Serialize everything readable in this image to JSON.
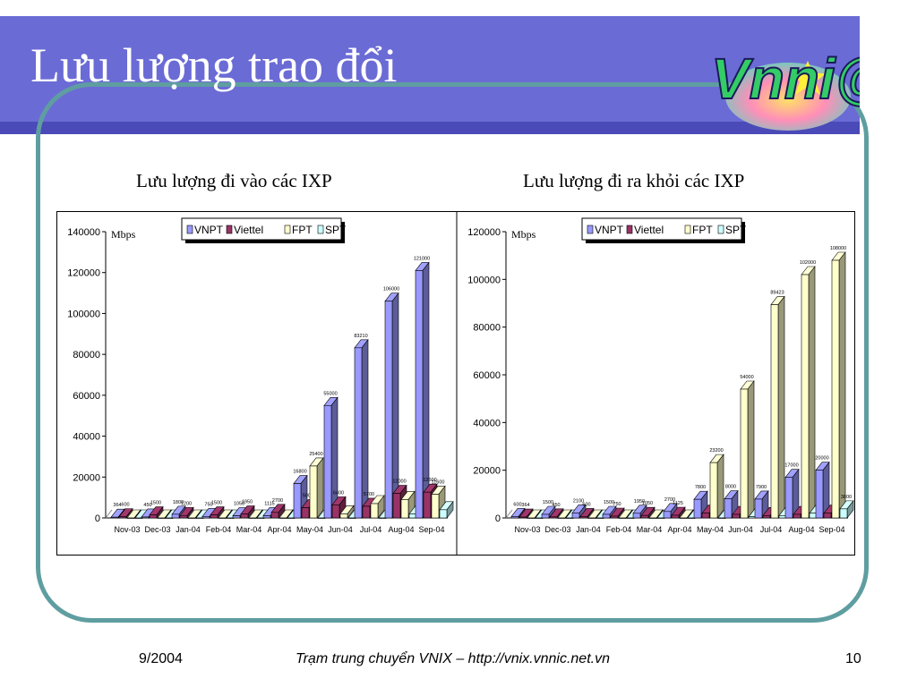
{
  "slide": {
    "title": "Lưu lượng trao đổi",
    "logo_text": "Vnni@",
    "footer_date": "9/2004",
    "footer_center": "Trạm trung chuyển VNIX – http://vnix.vnnic.net.vn",
    "page_number": "10"
  },
  "panels": {
    "left_title": "Lưu lượng đi vào các IXP",
    "right_title": "Lưu lượng đi ra khỏi các IXP"
  },
  "colors": {
    "VNPT": "#9999ff",
    "Viettel": "#993366",
    "FPT": "#ffffcc",
    "SPT": "#ccffff",
    "title_band": "#6b6bd6",
    "frame": "#5f9ea0"
  },
  "chart_data": [
    {
      "type": "bar",
      "title": "Lưu lượng đi vào các IXP",
      "unit": "Mbps",
      "categories": [
        "Nov-03",
        "Dec-03",
        "Jan-04",
        "Feb-04",
        "Mar-04",
        "Apr-04",
        "May-04",
        "Jun-04",
        "Jul-04",
        "Aug-04",
        "Sep-04"
      ],
      "ylim": [
        0,
        140000
      ],
      "yticks": [
        "0",
        "20000",
        "40000",
        "60000",
        "80000",
        "100000",
        "120000",
        "140000"
      ],
      "legend_position": "top",
      "series": [
        {
          "name": "VNPT",
          "values": [
            364,
            450,
            1800,
            750,
            1050,
            1115,
            16800,
            55000,
            83210,
            106000,
            121000
          ]
        },
        {
          "name": "Viettel",
          "values": [
            600,
            1500,
            1200,
            1500,
            1950,
            2700,
            5000,
            6400,
            5700,
            12000,
            12600
          ]
        },
        {
          "name": "FPT",
          "values": [
            0,
            0,
            0,
            0,
            0,
            0,
            25400,
            2000,
            7000,
            9000,
            11600
          ]
        },
        {
          "name": "SPT",
          "values": [
            0,
            0,
            0,
            0,
            0,
            0,
            0,
            0,
            0,
            2000,
            4000
          ]
        }
      ],
      "data_labels": [
        [
          "364",
          "450",
          "1800",
          "750",
          "1050",
          "1115",
          "16800",
          "55000",
          "83210",
          "106000",
          "121000"
        ],
        [
          "600",
          "1500",
          "1200",
          "1500",
          "1950",
          "2700",
          "5000",
          "6400",
          "5700",
          "12000",
          "12600"
        ],
        [
          "",
          "",
          "",
          "",
          "",
          "",
          "25400",
          "",
          "",
          "",
          "11600"
        ],
        [
          "",
          "",
          "",
          "",
          "",
          "",
          "",
          "",
          "",
          "",
          ""
        ]
      ]
    },
    {
      "type": "bar",
      "title": "Lưu lượng đi ra khỏi các IXP",
      "unit": "Mbps",
      "categories": [
        "Nov-03",
        "Dec-03",
        "Jan-04",
        "Feb-04",
        "Mar-04",
        "Apr-04",
        "May-04",
        "Jun-04",
        "Jul-04",
        "Aug-04",
        "Sep-04"
      ],
      "ylim": [
        0,
        120000
      ],
      "yticks": [
        "0",
        "20000",
        "40000",
        "60000",
        "80000",
        "100000",
        "120000"
      ],
      "legend_position": "top",
      "series": [
        {
          "name": "VNPT",
          "values": [
            600,
            1500,
            2100,
            1500,
            1950,
            2700,
            7800,
            8000,
            7900,
            17000,
            20000
          ]
        },
        {
          "name": "Viettel",
          "values": [
            364,
            450,
            600,
            750,
            1050,
            1125,
            2000,
            1500,
            1000,
            1500,
            2000
          ]
        },
        {
          "name": "FPT",
          "values": [
            0,
            0,
            0,
            0,
            0,
            0,
            23200,
            54000,
            89423,
            102000,
            108000
          ]
        },
        {
          "name": "SPT",
          "values": [
            0,
            0,
            0,
            0,
            0,
            0,
            0,
            500,
            1000,
            2000,
            3800
          ]
        }
      ],
      "data_labels": [
        [
          "600",
          "1500",
          "2100",
          "1500",
          "1950",
          "2700",
          "7800",
          "8000",
          "7900",
          "17000",
          "20000"
        ],
        [
          "364",
          "450",
          "600",
          "750",
          "1050",
          "1125",
          "",
          "",
          "",
          "",
          ""
        ],
        [
          "",
          "",
          "",
          "",
          "",
          "",
          "23200",
          "54000",
          "89423",
          "102000",
          "108000"
        ],
        [
          "",
          "",
          "",
          "",
          "",
          "",
          "",
          "",
          "",
          "",
          "3800"
        ]
      ]
    }
  ]
}
